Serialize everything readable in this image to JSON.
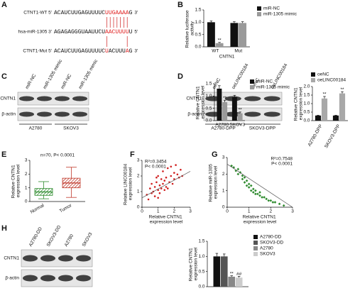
{
  "panel_labels": [
    "A",
    "B",
    "C",
    "D",
    "E",
    "F",
    "G",
    "H"
  ],
  "sequence_alignment": {
    "rows": [
      {
        "name": "CTNT1-WT 5'",
        "segments": [
          {
            "text": "ACAUCUUGAGUUUUC",
            "color": "#111111"
          },
          {
            "text": "UUGAAAA",
            "color": "#e02020"
          },
          {
            "text": "G",
            "color": "#111111"
          }
        ],
        "end": "3'"
      },
      {
        "name": "hsa-miR-1305 3'",
        "segments": [
          {
            "text": "AGAGAGGGUAAUUCU",
            "color": "#111111"
          },
          {
            "text": "AACUUUU",
            "color": "#e02020"
          },
          {
            "text": "U",
            "color": "#111111"
          }
        ],
        "end": "5'"
      },
      {
        "name": "CTNT1-Mut 5'",
        "segments": [
          {
            "text": "ACAUCUUGAGUUUUC",
            "color": "#111111"
          },
          {
            "text": "U",
            "color": "#e02020"
          },
          {
            "text": "ACUUU",
            "color": "#111111"
          },
          {
            "text": "A",
            "color": "#e02020"
          },
          {
            "text": "G",
            "color": "#111111"
          }
        ],
        "end": "3'"
      }
    ]
  },
  "blots": [
    {
      "lanes": [
        "miR-NC",
        "miR-1305 mimic",
        "miR-NC",
        "miR-1305 mimic"
      ],
      "rows": [
        "CNTN1",
        "β-actin"
      ],
      "groups": [
        "A2780",
        "SKOV3"
      ]
    },
    {
      "lanes": [
        "oeNC",
        "oeLINC00184",
        "oeNC",
        "oeLINC00184"
      ],
      "rows": [
        "CNTN1",
        "β-actin"
      ],
      "groups": [
        "A2780-DPP",
        "SKOV3-DPP"
      ]
    },
    {
      "lanes": [
        "A2780-DD",
        "SKOV3-DD",
        "A2780",
        "SKOV3"
      ],
      "rows": [
        "CNTN1",
        "β-actin"
      ]
    }
  ],
  "chart_data": [
    {
      "type": "bar",
      "ylabel": "Relative luciferase activity",
      "xlabel": "CNTN1",
      "categories": [
        "WT",
        "Mut"
      ],
      "ylim": [
        0,
        1.5
      ],
      "yticks": [
        {
          "value": 0,
          "label": "0.0"
        },
        {
          "value": 0.5,
          "label": "0.5"
        },
        {
          "value": 1,
          "label": "1.0"
        },
        {
          "value": 1.5,
          "label": "1.5"
        }
      ],
      "series": [
        {
          "name": "miR-NC",
          "color": "#111111",
          "values": [
            1.0,
            0.97
          ],
          "errors": [
            0.05,
            0.05
          ]
        },
        {
          "name": "miR-1305 mimic",
          "color": "#9a9a9a",
          "values": [
            0.15,
            0.97
          ],
          "errors": [
            0.03,
            0.05
          ],
          "significance": [
            "**",
            null
          ]
        }
      ]
    },
    {
      "type": "bar",
      "ylabel": "Relative CNTN1 expression level",
      "categories": [
        "A2780",
        "SKOV3"
      ],
      "ylim": [
        0,
        1.5
      ],
      "yticks": [
        {
          "value": 0,
          "label": "0.0"
        },
        {
          "value": 0.5,
          "label": "0.5"
        },
        {
          "value": 1,
          "label": "1.0"
        },
        {
          "value": 1.5,
          "label": "1.5"
        }
      ],
      "series": [
        {
          "name": "miR-NC",
          "color": "#111111",
          "values": [
            1.3,
            0.95
          ],
          "errors": [
            0.12,
            0.08
          ]
        },
        {
          "name": "miR-1305 mimic",
          "color": "#9a9a9a",
          "values": [
            0.75,
            0.3
          ],
          "errors": [
            0.08,
            0.05
          ],
          "significance": [
            "**",
            "**"
          ]
        }
      ]
    },
    {
      "type": "bar",
      "ylabel": "Relative CNTN1 expression level",
      "categories": [
        "A2780-DPP",
        "SKOV3-DPP"
      ],
      "ylim": [
        0,
        2
      ],
      "yticks": [
        {
          "value": 0,
          "label": "0.0"
        },
        {
          "value": 0.5,
          "label": "0.5"
        },
        {
          "value": 1,
          "label": "1.0"
        },
        {
          "value": 1.5,
          "label": "1.5"
        },
        {
          "value": 2,
          "label": "2.0"
        }
      ],
      "series": [
        {
          "name": "oeNC",
          "color": "#111111",
          "values": [
            0.3,
            0.3
          ],
          "errors": [
            0.02,
            0.02
          ]
        },
        {
          "name": "oeLINC00184",
          "color": "#a8a8a8",
          "values": [
            1.3,
            1.6
          ],
          "errors": [
            0.12,
            0.1
          ],
          "significance": [
            "**",
            "**"
          ]
        }
      ]
    },
    {
      "type": "box",
      "title": "n=70, P< 0.0001",
      "ylabel": "Relative CNTN1 expression level",
      "categories": [
        "Normal",
        "Tumor"
      ],
      "ylim": [
        0,
        3
      ],
      "yticks": [
        0,
        1,
        2,
        3
      ],
      "boxes": [
        {
          "whisker_low": 0.2,
          "q1": 0.45,
          "median": 0.7,
          "q3": 0.95,
          "whisker_high": 1.45,
          "color": "#2e8b2e"
        },
        {
          "whisker_low": 0.3,
          "q1": 1.0,
          "median": 1.35,
          "q3": 1.7,
          "whisker_high": 2.5,
          "color": "#c0392b"
        }
      ]
    },
    {
      "type": "scatter",
      "annotations": [
        "R²=0.3454",
        "P< 0.0001"
      ],
      "xlabel": "Relative CNTN1 expression level",
      "ylabel": "Relative LINC00184 expression level",
      "xlim": [
        0,
        3
      ],
      "xticks": [
        0,
        1,
        2,
        3
      ],
      "ylim": [
        0,
        3
      ],
      "yticks": [
        0,
        1,
        2,
        3
      ],
      "color": "#d02020",
      "marker": "circle",
      "x": [
        0.3,
        0.4,
        0.5,
        0.6,
        0.6,
        0.7,
        0.8,
        0.8,
        0.9,
        1.0,
        1.0,
        1.1,
        1.1,
        1.2,
        1.2,
        1.3,
        1.3,
        1.4,
        1.4,
        1.5,
        1.5,
        1.6,
        1.7,
        1.8,
        1.8,
        1.9,
        2.0,
        2.0,
        2.1,
        2.2,
        2.3,
        2.4,
        1.0,
        0.9,
        1.6,
        2.5
      ],
      "y": [
        0.8,
        0.5,
        1.2,
        0.9,
        1.5,
        1.0,
        1.3,
        0.7,
        1.6,
        1.1,
        2.0,
        1.4,
        0.9,
        1.8,
        1.2,
        1.5,
        2.3,
        1.1,
        1.7,
        1.9,
        1.3,
        2.5,
        1.6,
        2.0,
        2.6,
        1.5,
        2.2,
        1.8,
        2.7,
        2.1,
        1.9,
        2.4,
        0.6,
        1.9,
        1.2,
        2.0
      ],
      "fit": {
        "x": [
          0,
          3
        ],
        "y": [
          0.6,
          2.3
        ]
      }
    },
    {
      "type": "scatter",
      "annotations": [
        "R²=0.7548",
        "P< 0.0001"
      ],
      "xlabel": "Relative CNTN1 expression level",
      "ylabel": "Relative miR-1305 expression level",
      "xlim": [
        0,
        3
      ],
      "xticks": [
        0,
        1,
        2,
        3
      ],
      "ylim": [
        0,
        3
      ],
      "yticks": [
        0,
        1,
        2,
        3
      ],
      "color": "#2e8b2e",
      "marker": "diamond",
      "x": [
        0.2,
        0.3,
        0.4,
        0.5,
        0.5,
        0.6,
        0.7,
        0.7,
        0.8,
        0.8,
        0.9,
        0.9,
        1.0,
        1.0,
        1.1,
        1.1,
        1.2,
        1.2,
        1.3,
        1.3,
        1.4,
        1.5,
        1.5,
        1.6,
        1.7,
        1.8,
        1.9,
        2.0,
        2.1,
        2.2,
        2.4,
        2.6
      ],
      "y": [
        2.5,
        2.4,
        2.2,
        2.3,
        2.0,
        2.1,
        1.9,
        1.7,
        1.8,
        1.5,
        1.6,
        1.3,
        1.4,
        1.2,
        1.3,
        1.0,
        1.1,
        0.9,
        1.0,
        0.8,
        0.8,
        0.7,
        0.9,
        0.6,
        0.6,
        0.5,
        0.4,
        0.4,
        0.3,
        0.3,
        0.2,
        0.1
      ],
      "fit": {
        "x": [
          0,
          3
        ],
        "y": [
          2.6,
          0
        ]
      }
    },
    {
      "type": "bar",
      "ylabel": "Relative CNTN1 expression level",
      "categories": [
        null
      ],
      "ylim": [
        0,
        1.5
      ],
      "yticks": [
        {
          "value": 0,
          "label": "0.0"
        },
        {
          "value": 0.5,
          "label": "0.5"
        },
        {
          "value": 1,
          "label": "1.0"
        },
        {
          "value": 1.5,
          "label": "1.5"
        }
      ],
      "series": [
        {
          "name": "A2780-DD",
          "color": "#111111",
          "values": [
            1.0
          ],
          "errors": [
            0.1
          ]
        },
        {
          "name": "SKOV3-DD",
          "color": "#555555",
          "values": [
            1.0
          ],
          "errors": [
            0.08
          ]
        },
        {
          "name": "A2780",
          "color": "#888888",
          "values": [
            0.33
          ],
          "errors": [
            0.03
          ],
          "significance": [
            "**"
          ]
        },
        {
          "name": "SKOV3",
          "color": "#cccccc",
          "values": [
            0.3
          ],
          "errors": [
            0.04
          ],
          "significance": [
            "##"
          ]
        }
      ]
    }
  ]
}
